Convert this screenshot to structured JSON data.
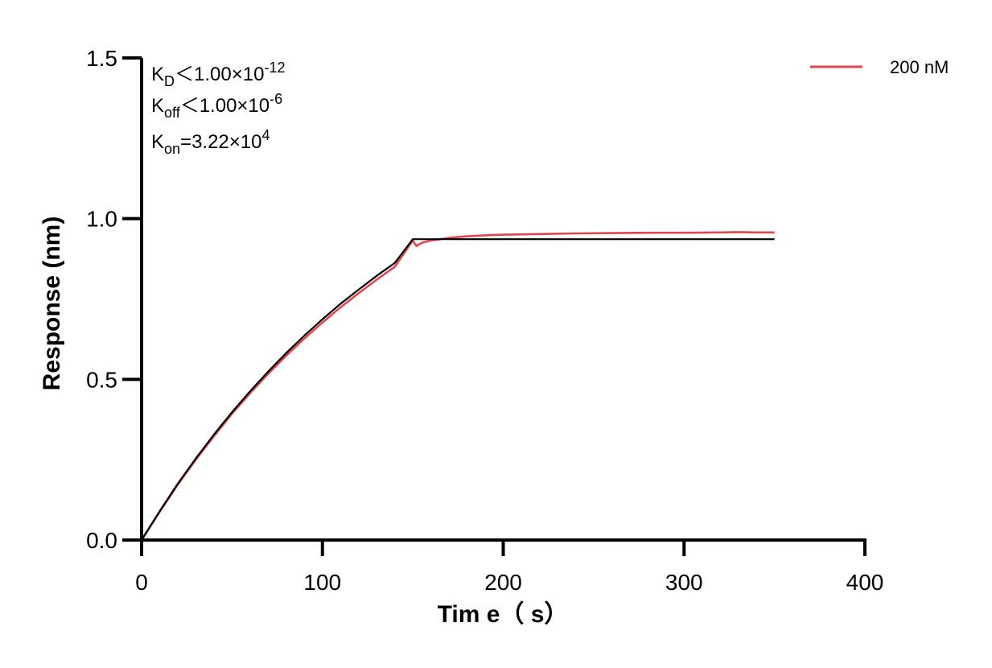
{
  "chart_data": {
    "type": "line",
    "title": "",
    "xlabel": "Tim e（ s）",
    "ylabel": "Response (nm)",
    "xlim": [
      0,
      400
    ],
    "ylim": [
      0,
      1.5
    ],
    "x_ticks": [
      0,
      100,
      200,
      300,
      400
    ],
    "x_tick_labels": [
      "0",
      "100",
      "200",
      "300",
      "400"
    ],
    "y_ticks": [
      0,
      0.5,
      1.0,
      1.5
    ],
    "y_tick_labels": [
      "0.0",
      "0.5",
      "1.0",
      "1.5"
    ],
    "grid": false,
    "legend_position": "top-right",
    "annotations": {
      "kd": {
        "symbol": "K",
        "sub": "D",
        "text": "＜1.00×10",
        "exp": "-12"
      },
      "koff": {
        "symbol": "K",
        "sub": "off",
        "text": "＜1.00×10",
        "exp": "-6"
      },
      "kon": {
        "symbol": "K",
        "sub": "on",
        "text": "=3.22×10",
        "exp": "4"
      }
    },
    "series": [
      {
        "name": "200 nM",
        "color": "#e0474c",
        "role": "measured",
        "x": [
          0,
          10,
          20,
          30,
          40,
          50,
          60,
          70,
          80,
          90,
          100,
          110,
          120,
          130,
          140,
          150,
          152,
          155,
          160,
          170,
          180,
          190,
          200,
          220,
          240,
          260,
          280,
          300,
          320,
          330,
          340,
          350
        ],
        "y": [
          0,
          0.088,
          0.172,
          0.25,
          0.323,
          0.393,
          0.457,
          0.517,
          0.574,
          0.627,
          0.677,
          0.724,
          0.768,
          0.81,
          0.85,
          0.932,
          0.915,
          0.925,
          0.932,
          0.94,
          0.945,
          0.948,
          0.95,
          0.952,
          0.954,
          0.955,
          0.956,
          0.956,
          0.957,
          0.958,
          0.957,
          0.957
        ]
      },
      {
        "role": "fit",
        "color": "#000000",
        "x": [
          0,
          10,
          20,
          30,
          40,
          50,
          60,
          70,
          80,
          90,
          100,
          110,
          120,
          130,
          140,
          150,
          200,
          250,
          300,
          350
        ],
        "y": [
          0,
          0.09,
          0.175,
          0.254,
          0.328,
          0.398,
          0.463,
          0.524,
          0.582,
          0.636,
          0.687,
          0.735,
          0.779,
          0.822,
          0.862,
          0.936,
          0.936,
          0.936,
          0.936,
          0.936
        ]
      }
    ]
  }
}
